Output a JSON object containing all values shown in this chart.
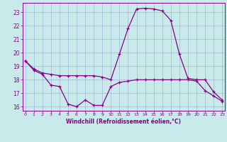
{
  "hours": [
    0,
    1,
    2,
    3,
    4,
    5,
    6,
    7,
    8,
    9,
    10,
    11,
    12,
    13,
    14,
    15,
    16,
    17,
    18,
    19,
    20,
    21,
    22,
    23
  ],
  "temp": [
    19.4,
    18.8,
    18.5,
    18.4,
    18.3,
    18.3,
    18.3,
    18.3,
    18.3,
    18.2,
    18.0,
    19.9,
    21.8,
    23.25,
    23.3,
    23.25,
    23.1,
    22.4,
    19.9,
    18.1,
    18.0,
    18.0,
    17.1,
    16.5
  ],
  "windchill": [
    19.4,
    18.7,
    18.4,
    17.6,
    17.5,
    16.2,
    16.0,
    16.5,
    16.1,
    16.1,
    17.5,
    17.8,
    17.9,
    18.0,
    18.0,
    18.0,
    18.0,
    18.0,
    18.0,
    18.0,
    17.9,
    17.2,
    16.8,
    16.4
  ],
  "ylim_min": 15.7,
  "ylim_max": 23.7,
  "yticks": [
    16,
    17,
    18,
    19,
    20,
    21,
    22,
    23
  ],
  "xlim_min": -0.3,
  "xlim_max": 23.3,
  "line_color": "#880088",
  "bg_color": "#c8eaea",
  "grid_color": "#99aacc",
  "xlabel": "Windchill (Refroidissement éolien,°C)"
}
